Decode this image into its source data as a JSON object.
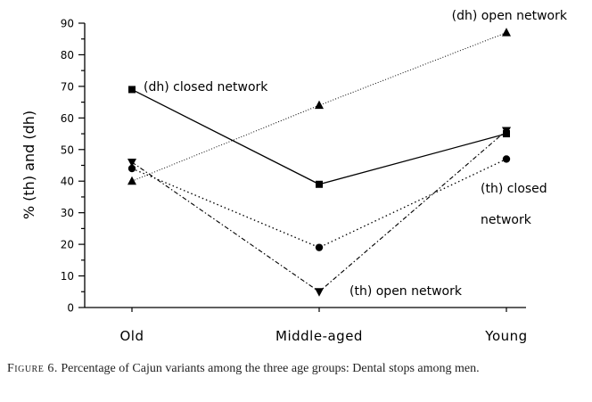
{
  "chart_data": {
    "type": "line",
    "categories": [
      "Old",
      "Middle-aged",
      "Young"
    ],
    "ylabel": "% (th) and (dh)",
    "xlabel": "",
    "ylim": [
      0,
      90
    ],
    "yticks": [
      0,
      10,
      20,
      30,
      40,
      50,
      60,
      70,
      80,
      90
    ],
    "grid": false,
    "series": [
      {
        "key": "dh_closed",
        "values": [
          69,
          39,
          55
        ],
        "marker": "square",
        "line_style": "solid"
      },
      {
        "key": "dh_open",
        "values": [
          40,
          64,
          87
        ],
        "marker": "triangle-up",
        "line_style": "dotted-fine"
      },
      {
        "key": "th_closed",
        "values": [
          44,
          19,
          47
        ],
        "marker": "circle",
        "line_style": "dotted"
      },
      {
        "key": "th_open",
        "values": [
          46,
          5,
          56
        ],
        "marker": "triangle-down",
        "line_style": "dash-dot"
      }
    ],
    "annotations": [
      {
        "text": "(dh) closed network",
        "series": "dh_closed",
        "near": "Old"
      },
      {
        "text": "(dh) open network",
        "series": "dh_open",
        "near": "Young"
      },
      {
        "text": "(th) closed",
        "series": "th_closed",
        "near": "Young"
      },
      {
        "text": "network",
        "series": "th_closed",
        "near": "Young"
      },
      {
        "text": "(th) open network",
        "series": "th_open",
        "near": "Middle-aged"
      }
    ]
  },
  "caption": {
    "figure_label": "Figure 6.",
    "text": "Percentage of Cajun variants among the three age groups: Dental stops among men."
  }
}
